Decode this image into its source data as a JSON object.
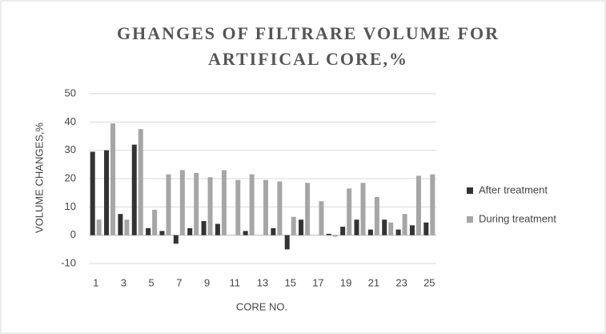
{
  "chart_data": {
    "type": "bar",
    "title": [
      "GHANGES OF FILTRARE VOLUME FOR",
      "ARTIFICAL CORE,%"
    ],
    "xlabel": "CORE NO.",
    "ylabel": "VOLUME CHANGES,%",
    "categories": [
      1,
      null,
      3,
      null,
      5,
      null,
      7,
      null,
      9,
      null,
      11,
      null,
      13,
      null,
      15,
      null,
      17,
      null,
      19,
      null,
      21,
      null,
      23,
      null,
      25
    ],
    "series": [
      {
        "name": "After treatment",
        "color": "#333333",
        "values": [
          29.5,
          30,
          7.5,
          32,
          2.5,
          1.5,
          -3,
          2.5,
          5,
          4,
          0,
          1.5,
          0,
          2.5,
          -5,
          5.5,
          0,
          0.5,
          3,
          5.5,
          2,
          5.5,
          2,
          3.5,
          4.5
        ]
      },
      {
        "name": "During treatment",
        "color": "#a6a6a6",
        "values": [
          5.5,
          39.5,
          5.5,
          37.5,
          9,
          21.5,
          23,
          22,
          20.5,
          23,
          19.5,
          21.5,
          19.5,
          19,
          6.5,
          18.5,
          12,
          -0.5,
          16.5,
          18.5,
          13.5,
          4.5,
          7.5,
          21,
          21.5
        ]
      }
    ],
    "ylim": [
      -10,
      50
    ],
    "yticks": [
      -10,
      0,
      10,
      20,
      30,
      40,
      50
    ],
    "grid": true,
    "legend": "right"
  }
}
